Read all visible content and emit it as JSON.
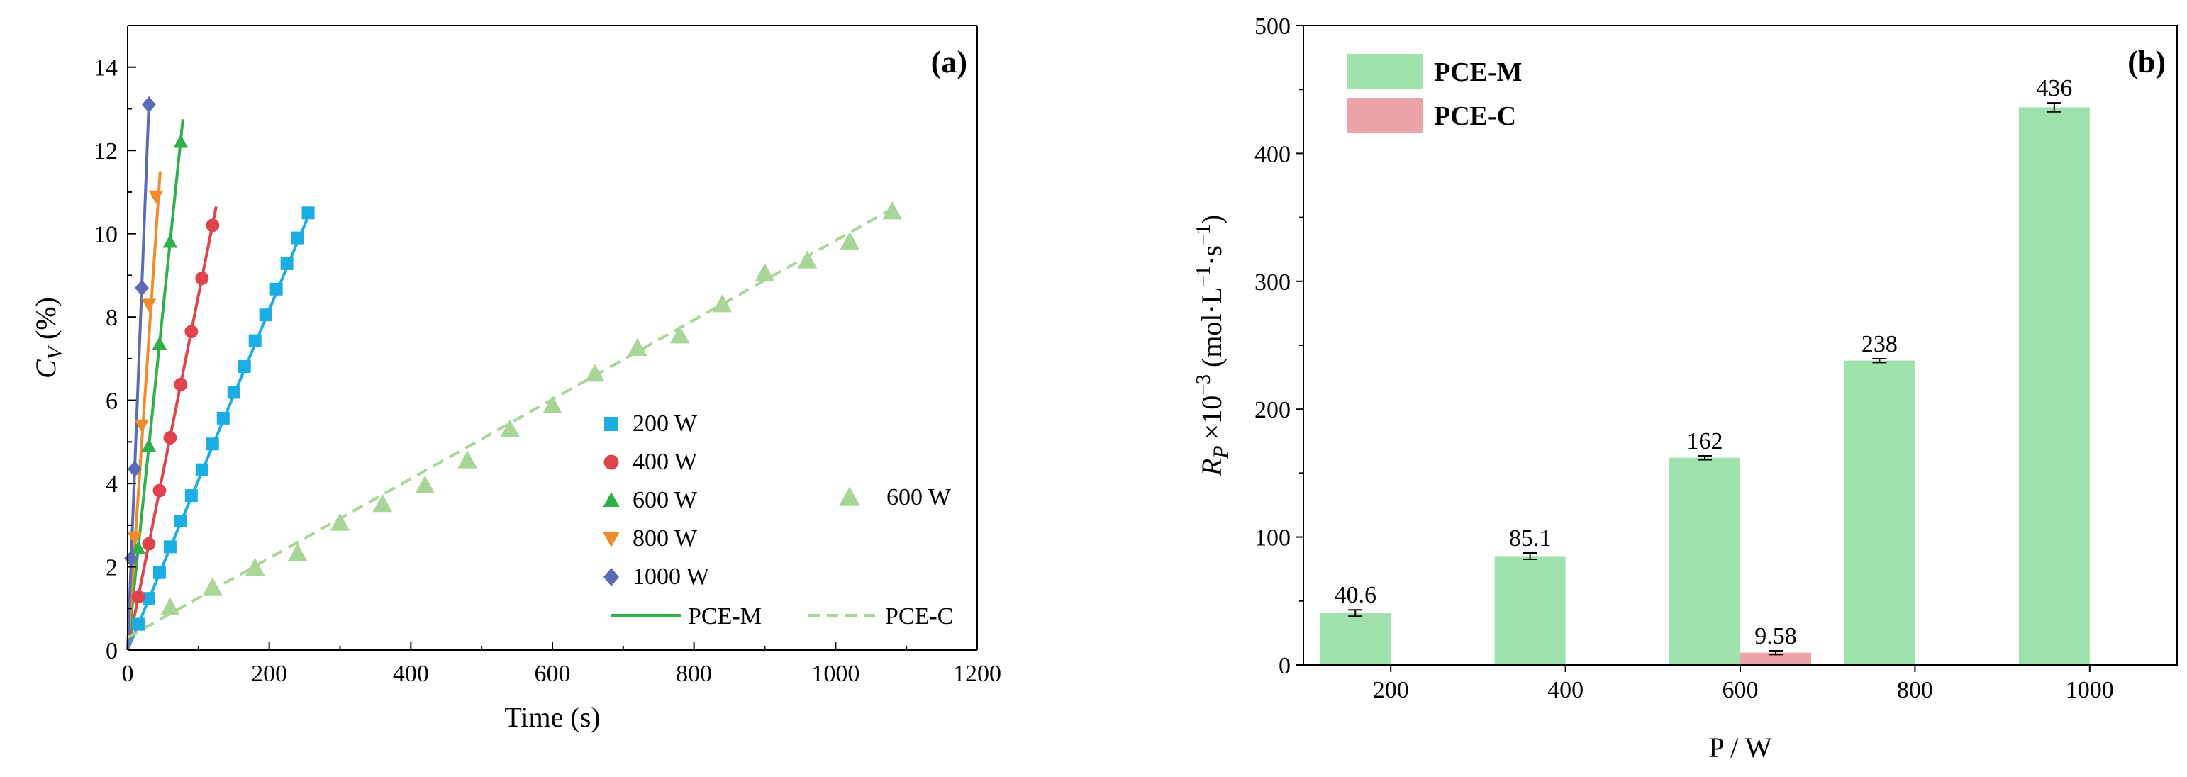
{
  "chart_data": [
    {
      "type": "scatter",
      "panel_label": "(a)",
      "xlabel": "Time (s)",
      "ylabel_main": "C",
      "ylabel_sub": "V",
      "ylabel_suffix": "(%)",
      "xlim": [
        0,
        1200
      ],
      "ylim": [
        0,
        15
      ],
      "xticks": [
        "0",
        "200",
        "400",
        "600",
        "800",
        "1000",
        "1200"
      ],
      "yticks": [
        "0",
        "2",
        "4",
        "6",
        "8",
        "10",
        "12",
        "14"
      ],
      "series": [
        {
          "name": "200 W",
          "marker": "square",
          "color": "#1aaee5",
          "group": "PCE-M",
          "x": [
            15,
            30,
            45,
            60,
            75,
            90,
            105,
            120,
            135,
            150,
            165,
            180,
            195,
            210,
            225,
            240,
            255
          ],
          "y": [
            0.62,
            1.24,
            1.86,
            2.48,
            3.1,
            3.71,
            4.33,
            4.95,
            5.57,
            6.19,
            6.81,
            7.43,
            8.05,
            8.67,
            9.28,
            9.9,
            10.5
          ],
          "fit": [
            [
              0,
              0
            ],
            [
              260,
              10.62
            ]
          ]
        },
        {
          "name": "400 W",
          "marker": "circle",
          "color": "#e0434b",
          "group": "PCE-M",
          "x": [
            15,
            30,
            45,
            60,
            75,
            90,
            105,
            120
          ],
          "y": [
            1.28,
            2.55,
            3.83,
            5.1,
            6.38,
            7.65,
            8.93,
            10.2
          ],
          "fit": [
            [
              0,
              0
            ],
            [
              125,
              10.65
            ]
          ]
        },
        {
          "name": "600 W",
          "marker": "triangle",
          "color": "#2fb04a",
          "group": "PCE-M",
          "x": [
            15,
            30,
            45,
            60,
            75
          ],
          "y": [
            2.45,
            4.9,
            7.35,
            9.8,
            12.2
          ],
          "fit": [
            [
              0,
              0
            ],
            [
              78,
              12.75
            ]
          ]
        },
        {
          "name": "800 W",
          "marker": "triangle-down",
          "color": "#f08c2a",
          "group": "PCE-M",
          "x": [
            10,
            20,
            30,
            40
          ],
          "y": [
            2.7,
            5.4,
            8.3,
            10.9
          ],
          "fit": [
            [
              0,
              0
            ],
            [
              46,
              11.5
            ]
          ]
        },
        {
          "name": "1000 W",
          "marker": "diamond",
          "color": "#5b6cb5",
          "group": "PCE-M",
          "x": [
            5,
            10,
            20,
            30
          ],
          "y": [
            2.2,
            4.35,
            8.7,
            13.1
          ],
          "fit": [
            [
              0,
              0
            ],
            [
              30,
              13.1
            ]
          ]
        },
        {
          "name": "600 W",
          "marker": "triangle",
          "color": "#a9d597",
          "group": "PCE-C",
          "x": [
            60,
            120,
            180,
            240,
            300,
            360,
            420,
            480,
            540,
            600,
            660,
            720,
            780,
            840,
            900,
            960,
            1020,
            1080
          ],
          "y": [
            1.02,
            1.5,
            1.97,
            2.32,
            3.05,
            3.5,
            3.95,
            4.55,
            5.3,
            5.87,
            6.63,
            7.25,
            7.55,
            8.3,
            9.05,
            9.35,
            9.8,
            10.53
          ],
          "fit": [
            [
              0,
              0.3
            ],
            [
              1080,
              10.6
            ]
          ]
        }
      ],
      "legend": {
        "entries": [
          "200 W",
          "400 W",
          "600 W",
          "800 W",
          "1000 W"
        ],
        "extra_entry": "600 W",
        "line_m": "PCE-M",
        "line_c": "PCE-C",
        "line_m_color": "#2fb04a",
        "line_c_color": "#a9d597"
      }
    },
    {
      "type": "bar",
      "panel_label": "(b)",
      "xlabel": "P / W",
      "ylabel_main": "R",
      "ylabel_sub": "P",
      "ylabel_mult": "×10",
      "ylabel_exp": "−3",
      "ylabel_unit_pre": "(mol·L",
      "ylabel_unit_exp1": "−1",
      "ylabel_unit_mid": "·s",
      "ylabel_unit_exp2": "−1",
      "ylabel_unit_post": ")",
      "categories": [
        "200",
        "400",
        "600",
        "800",
        "1000"
      ],
      "ylim": [
        0,
        500
      ],
      "yticks": [
        "0",
        "100",
        "200",
        "300",
        "400",
        "500"
      ],
      "series": [
        {
          "name": "PCE-M",
          "color": "#9fe2ad",
          "values": [
            40.6,
            85.1,
            162,
            238,
            436
          ],
          "labels": [
            "40.6",
            "85.1",
            "162",
            "238",
            "436"
          ],
          "errors": [
            2.5,
            2.5,
            1.5,
            1.5,
            3.5
          ]
        },
        {
          "name": "PCE-C",
          "color": "#eda4a8",
          "values": [
            null,
            null,
            9.58,
            null,
            null
          ],
          "labels": [
            "",
            "",
            "9.58",
            "",
            ""
          ],
          "errors": [
            null,
            null,
            1.5,
            null,
            null
          ]
        }
      ],
      "legend": [
        "PCE-M",
        "PCE-C"
      ]
    }
  ]
}
